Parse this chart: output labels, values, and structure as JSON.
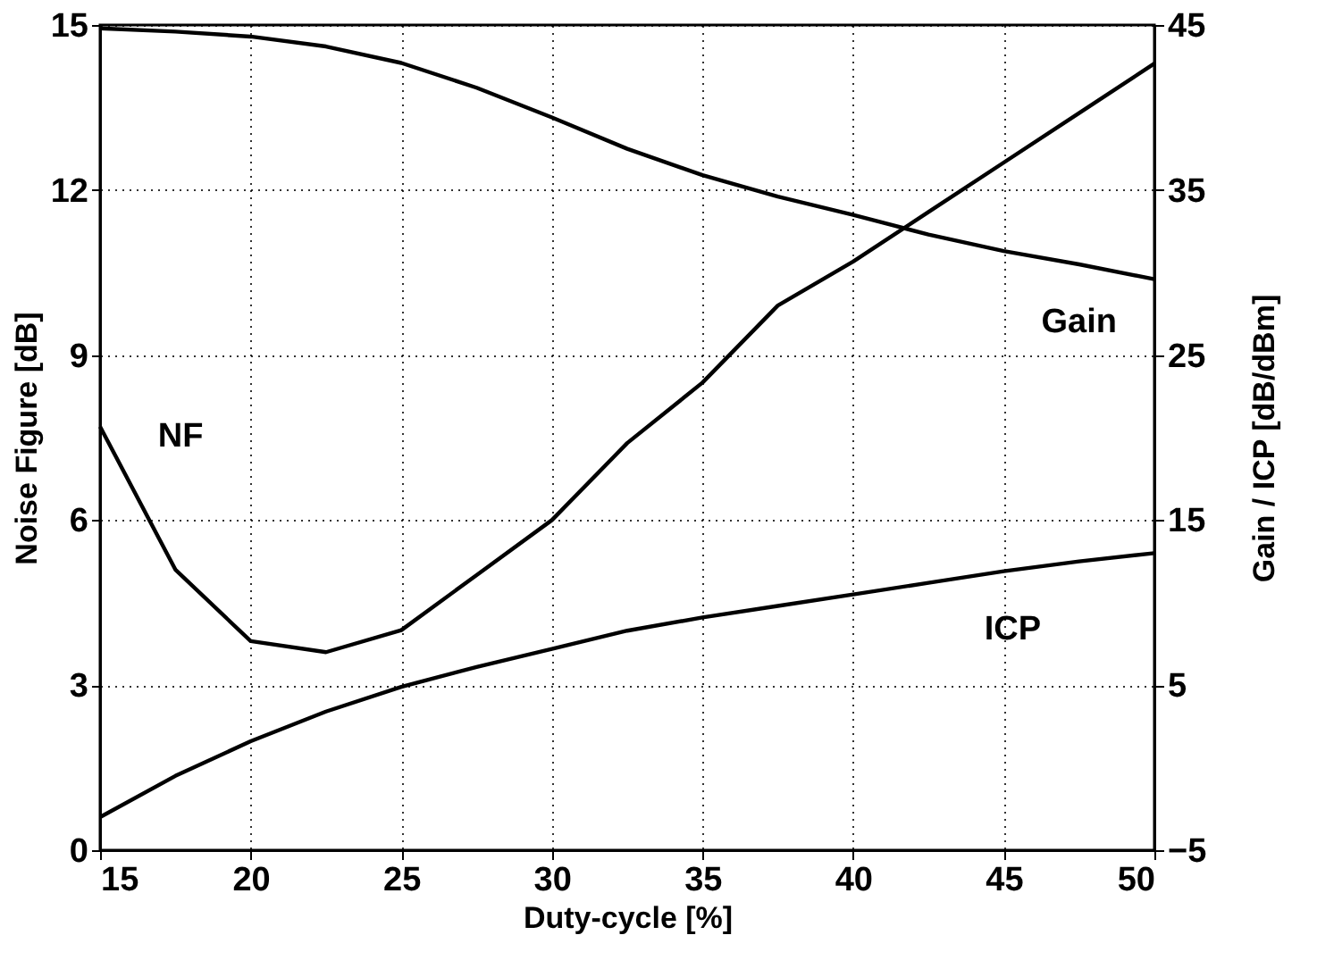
{
  "chart_data": {
    "type": "line",
    "xlabel": "Duty-cycle [%]",
    "ylabel": "Noise Figure [dB]",
    "y2label": "Gain / ICP [dB/dBm]",
    "x": [
      15,
      17.5,
      20,
      22.5,
      25,
      27.5,
      30,
      32.5,
      35,
      37.5,
      40,
      42.5,
      45,
      47.5,
      50
    ],
    "series": [
      {
        "name": "NF",
        "color": "#000000",
        "values": [
          7.7,
          5.1,
          3.8,
          3.6,
          4.0,
          5.0,
          6.0,
          7.4,
          8.5,
          9.9,
          10.7,
          11.6,
          12.5,
          13.4,
          14.3
        ]
      },
      {
        "name": "Gain",
        "color": "#000000",
        "axis": "y2",
        "values": [
          44.8,
          44.6,
          44.3,
          43.7,
          42.7,
          41.2,
          39.4,
          37.5,
          35.9,
          34.6,
          33.5,
          32.3,
          31.3,
          30.5,
          29.6
        ]
      },
      {
        "name": "ICP",
        "color": "#000000",
        "axis": "y2",
        "values": [
          -3.0,
          -0.5,
          1.6,
          3.4,
          4.9,
          6.1,
          7.2,
          8.3,
          9.1,
          9.8,
          10.5,
          11.2,
          11.9,
          12.5,
          13.0
        ]
      }
    ],
    "xlim": [
      15,
      50
    ],
    "xticks": [
      15,
      20,
      25,
      30,
      35,
      40,
      45,
      50
    ],
    "ylim": [
      0,
      15
    ],
    "yticks": [
      0,
      3,
      6,
      9,
      12,
      15
    ],
    "y2lim": [
      -5,
      45
    ],
    "y2ticks": [
      -5,
      5,
      15,
      25,
      35,
      45
    ],
    "grid": true,
    "line_style": "solid",
    "marker": "none"
  }
}
